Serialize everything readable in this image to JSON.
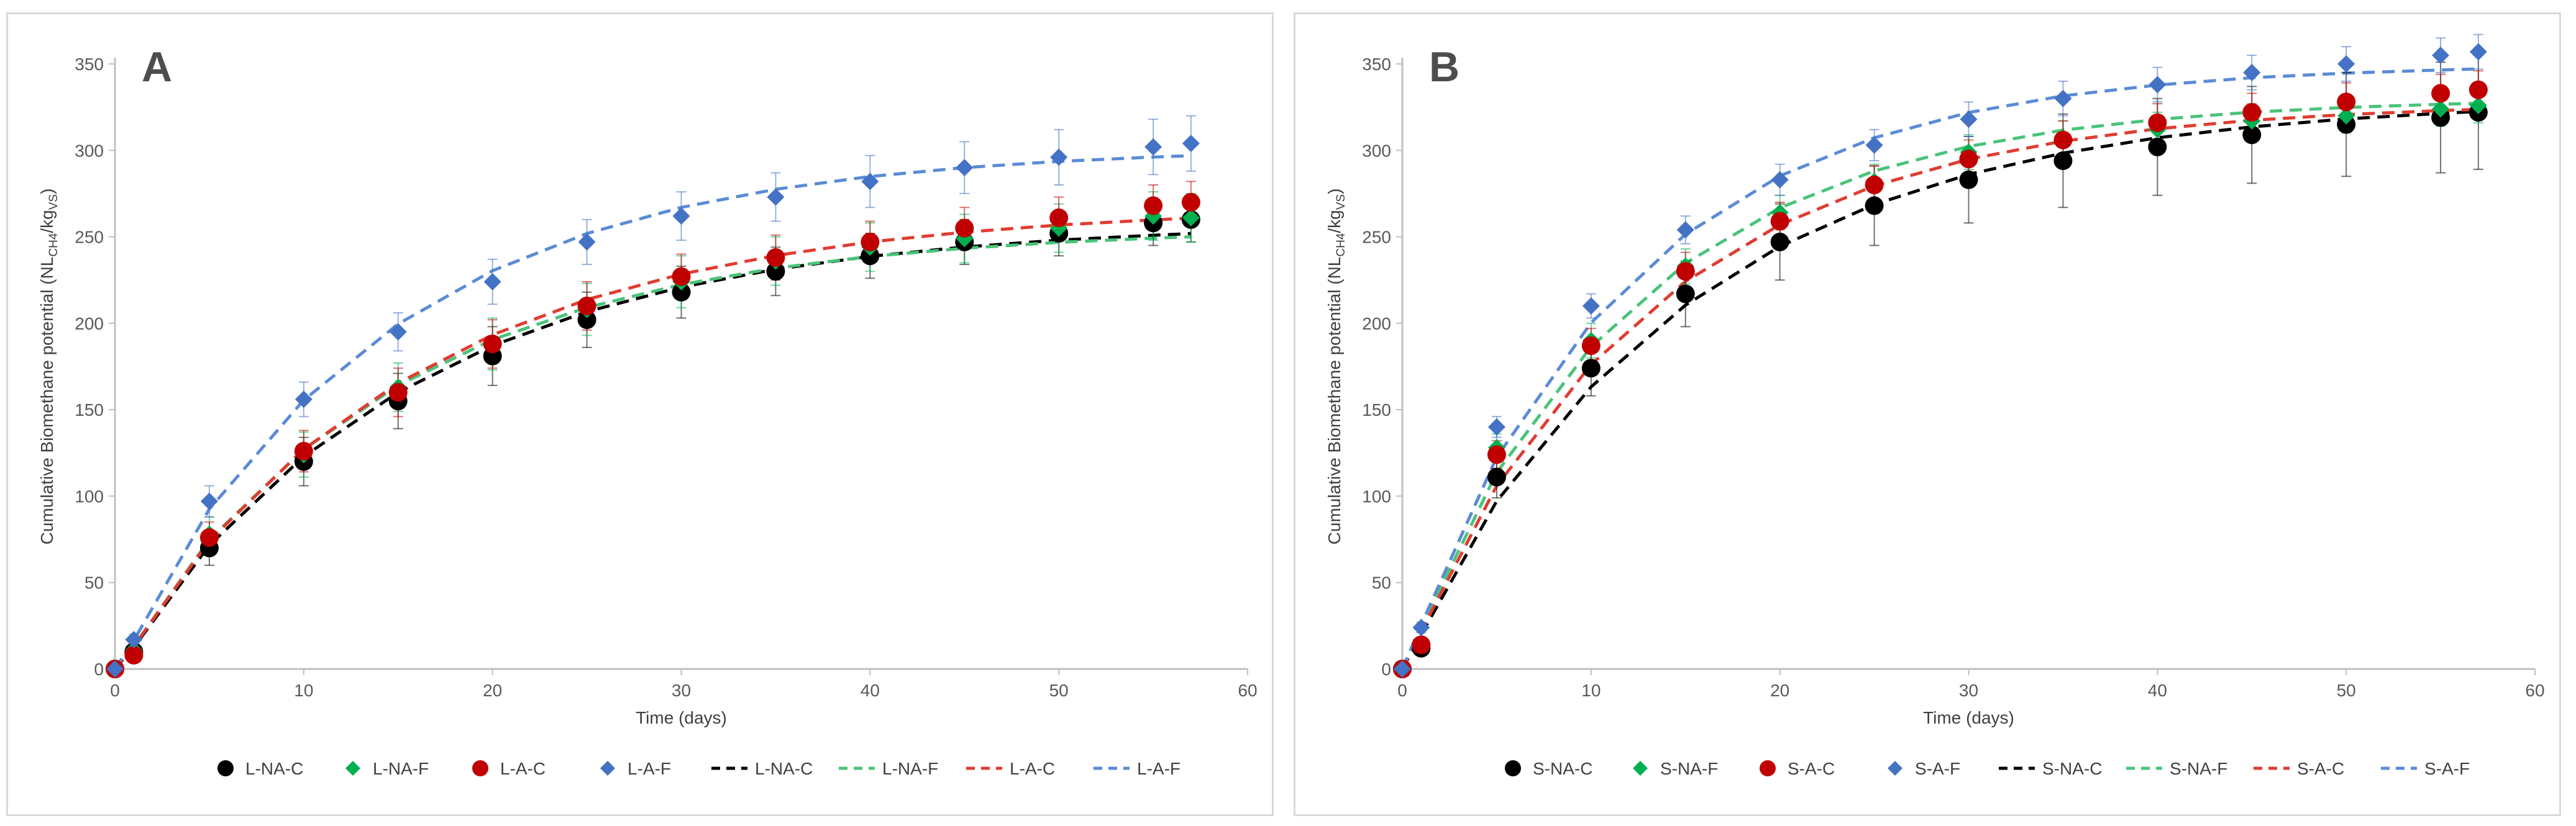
{
  "chart_data": [
    {
      "type": "scatter",
      "panel_label": "A",
      "xlabel": "Time (days)",
      "ylabel_prefix": "Cumulative Biomethane potential (NL",
      "ylabel_sub1": "CH4",
      "ylabel_mid": "/kg",
      "ylabel_sub2": "VS",
      "ylabel_suffix": ")",
      "xlim": [
        0,
        60
      ],
      "ylim": [
        0,
        350
      ],
      "xticks": [
        0,
        10,
        20,
        30,
        40,
        50,
        60
      ],
      "yticks": [
        0,
        50,
        100,
        150,
        200,
        250,
        300,
        350
      ],
      "grid": false,
      "legend_position": "bottom",
      "x": [
        0,
        1,
        5,
        10,
        15,
        20,
        25,
        30,
        35,
        40,
        45,
        50,
        55,
        57
      ],
      "series": [
        {
          "name": "L-NA-C",
          "kind": "markers",
          "marker": "circle",
          "color": "#000000",
          "values": [
            0,
            10,
            70,
            120,
            155,
            181,
            202,
            218,
            230,
            239,
            247,
            252,
            258,
            260
          ],
          "errors": [
            0,
            3,
            10,
            14,
            16,
            17,
            16,
            15,
            14,
            13,
            13,
            13,
            13,
            13
          ]
        },
        {
          "name": "L-NA-F",
          "kind": "markers",
          "marker": "diamond",
          "color": "#00b050",
          "values": [
            0,
            11,
            78,
            124,
            163,
            188,
            208,
            224,
            236,
            244,
            249,
            255,
            262,
            261
          ],
          "errors": [
            0,
            3,
            10,
            13,
            14,
            15,
            15,
            15,
            14,
            14,
            14,
            14,
            14,
            14
          ]
        },
        {
          "name": "L-A-C",
          "kind": "markers",
          "marker": "circle",
          "color": "#c00000",
          "values": [
            0,
            8,
            76,
            126,
            160,
            188,
            210,
            227,
            238,
            247,
            255,
            261,
            268,
            270
          ],
          "errors": [
            0,
            3,
            9,
            12,
            14,
            14,
            14,
            13,
            13,
            12,
            12,
            12,
            12,
            12
          ]
        },
        {
          "name": "L-A-F",
          "kind": "markers",
          "marker": "diamond",
          "color": "#4472c4",
          "values": [
            0,
            17,
            97,
            156,
            195,
            224,
            247,
            262,
            273,
            282,
            290,
            296,
            302,
            304
          ],
          "errors": [
            0,
            3,
            9,
            10,
            11,
            13,
            13,
            14,
            14,
            15,
            15,
            16,
            16,
            16
          ]
        },
        {
          "name": "L-NA-C",
          "kind": "dashed",
          "color": "#000000",
          "values": [
            0,
            12.6,
            71.6,
            122.9,
            160.1,
            187.1,
            206.7,
            220.9,
            231.2,
            238.7,
            244.1,
            248.1,
            250.9,
            251.9
          ]
        },
        {
          "name": "L-NA-F",
          "kind": "dashed",
          "color": "#4ac37a",
          "values": [
            0,
            13.3,
            74.9,
            127.1,
            164.1,
            190.5,
            209.1,
            222.4,
            231.9,
            238.6,
            243.4,
            246.8,
            249.2,
            250.0
          ]
        },
        {
          "name": "L-A-C",
          "kind": "dashed",
          "color": "#e03c31",
          "values": [
            0,
            13.1,
            74.3,
            127.1,
            165.4,
            193.3,
            213.7,
            228.4,
            239.2,
            247.0,
            252.7,
            256.8,
            259.8,
            260.8
          ]
        },
        {
          "name": "L-A-F",
          "kind": "dashed",
          "color": "#5b8bd6",
          "values": [
            0,
            16.6,
            92.5,
            155.5,
            199.6,
            230.4,
            251.9,
            267.0,
            277.5,
            284.9,
            290.0,
            293.6,
            296.1,
            296.9
          ]
        }
      ]
    },
    {
      "type": "scatter",
      "panel_label": "B",
      "xlabel": "Time (days)",
      "ylabel_prefix": "Cumulative Biomethane potential (NL",
      "ylabel_sub1": "CH4",
      "ylabel_mid": "/kg",
      "ylabel_sub2": "VS",
      "ylabel_suffix": ")",
      "xlim": [
        0,
        60
      ],
      "ylim": [
        0,
        350
      ],
      "xticks": [
        0,
        10,
        20,
        30,
        40,
        50,
        60
      ],
      "yticks": [
        0,
        50,
        100,
        150,
        200,
        250,
        300,
        350
      ],
      "grid": false,
      "legend_position": "bottom",
      "x": [
        0,
        1,
        5,
        10,
        15,
        20,
        25,
        30,
        35,
        40,
        45,
        50,
        55,
        57
      ],
      "series": [
        {
          "name": "S-NA-C",
          "kind": "markers",
          "marker": "circle",
          "color": "#000000",
          "values": [
            0,
            12,
            111,
            174,
            217,
            247,
            268,
            283,
            294,
            302,
            309,
            315,
            319,
            322
          ],
          "errors": [
            0,
            3,
            12,
            16,
            19,
            22,
            23,
            25,
            27,
            28,
            28,
            30,
            32,
            33
          ]
        },
        {
          "name": "S-NA-F",
          "kind": "markers",
          "marker": "diamond",
          "color": "#00b050",
          "values": [
            0,
            14,
            128,
            190,
            233,
            264,
            282,
            299,
            307,
            312,
            317,
            320,
            324,
            326
          ],
          "errors": [
            0,
            3,
            8,
            10,
            10,
            10,
            10,
            10,
            10,
            10,
            10,
            10,
            10,
            10
          ]
        },
        {
          "name": "S-A-C",
          "kind": "markers",
          "marker": "circle",
          "color": "#c00000",
          "values": [
            0,
            14,
            124,
            187,
            230,
            259,
            280,
            295,
            306,
            316,
            322,
            328,
            333,
            335
          ],
          "errors": [
            0,
            3,
            8,
            10,
            11,
            11,
            11,
            11,
            11,
            11,
            11,
            11,
            11,
            11
          ]
        },
        {
          "name": "S-A-F",
          "kind": "markers",
          "marker": "diamond",
          "color": "#4472c4",
          "values": [
            0,
            24,
            140,
            210,
            254,
            283,
            303,
            318,
            330,
            338,
            345,
            350,
            355,
            357
          ],
          "errors": [
            0,
            3,
            6,
            7,
            8,
            9,
            9,
            10,
            10,
            10,
            10,
            10,
            10,
            10
          ]
        },
        {
          "name": "S-NA-C",
          "kind": "dashed",
          "color": "#000000",
          "values": [
            0,
            20.0,
            97.1,
            163.2,
            210.5,
            244.5,
            268.7,
            286.1,
            298.4,
            307.3,
            313.6,
            318.2,
            321.4,
            322.5
          ]
        },
        {
          "name": "S-NA-F",
          "kind": "dashed",
          "color": "#4ac37a",
          "values": [
            0,
            23.8,
            113.6,
            186.4,
            234.7,
            266.8,
            288.1,
            302.3,
            311.7,
            317.9,
            322.1,
            324.8,
            326.7,
            327.2
          ]
        },
        {
          "name": "S-A-C",
          "kind": "dashed",
          "color": "#e03c31",
          "values": [
            0,
            22.0,
            106.0,
            176.1,
            224.2,
            257.0,
            279.5,
            294.9,
            305.3,
            312.5,
            317.4,
            320.7,
            323.0,
            323.7
          ]
        },
        {
          "name": "S-A-F",
          "kind": "dashed",
          "color": "#5b8bd6",
          "values": [
            0,
            25.7,
            122.6,
            200.3,
            251.5,
            285.2,
            307.3,
            321.9,
            331.5,
            337.8,
            342.0,
            344.7,
            346.5,
            347.1
          ]
        }
      ]
    }
  ]
}
